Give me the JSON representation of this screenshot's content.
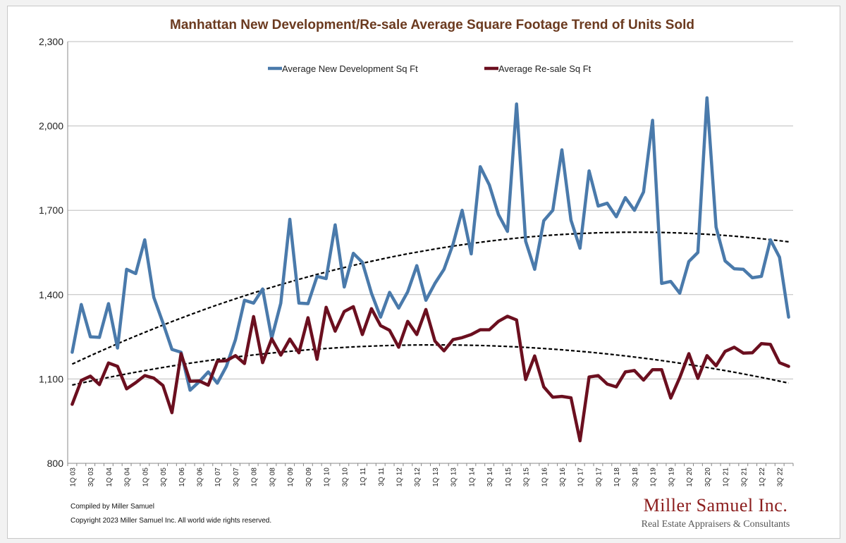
{
  "chart_data": {
    "type": "line",
    "title": "Manhattan New Development/Re-sale Average Square Footage Trend of Units Sold",
    "xlabel": "",
    "ylabel": "",
    "ylim": [
      800,
      2300
    ],
    "y_ticks": [
      "800",
      "1,100",
      "1,400",
      "1,700",
      "2,000",
      "2,300"
    ],
    "grid": "horizontal",
    "legend_position": "top-center",
    "x_tick_labels": [
      "1Q 03",
      "3Q 03",
      "1Q 04",
      "3Q 04",
      "1Q 05",
      "3Q 05",
      "1Q 06",
      "3Q 06",
      "1Q 07",
      "3Q 07",
      "1Q 08",
      "3Q 08",
      "1Q 09",
      "3Q 09",
      "1Q 10",
      "3Q 10",
      "1Q 11",
      "3Q 11",
      "1Q 12",
      "3Q 12",
      "1Q 13",
      "3Q 13",
      "1Q 14",
      "3Q 14",
      "1Q 15",
      "3Q 15",
      "1Q 16",
      "3Q 16",
      "1Q 17",
      "3Q 17",
      "1Q 18",
      "3Q 18",
      "1Q 19",
      "3Q 19",
      "1Q 20",
      "3Q 20",
      "1Q 21",
      "3Q 21",
      "1Q 22",
      "3Q 22"
    ],
    "x": [
      "1Q 03",
      "2Q 03",
      "3Q 03",
      "4Q 03",
      "1Q 04",
      "2Q 04",
      "3Q 04",
      "4Q 04",
      "1Q 05",
      "2Q 05",
      "3Q 05",
      "4Q 05",
      "1Q 06",
      "2Q 06",
      "3Q 06",
      "4Q 06",
      "1Q 07",
      "2Q 07",
      "3Q 07",
      "4Q 07",
      "1Q 08",
      "2Q 08",
      "3Q 08",
      "4Q 08",
      "1Q 09",
      "2Q 09",
      "3Q 09",
      "4Q 09",
      "1Q 10",
      "2Q 10",
      "3Q 10",
      "4Q 10",
      "1Q 11",
      "2Q 11",
      "3Q 11",
      "4Q 11",
      "1Q 12",
      "2Q 12",
      "3Q 12",
      "4Q 12",
      "1Q 13",
      "2Q 13",
      "3Q 13",
      "4Q 13",
      "1Q 14",
      "2Q 14",
      "3Q 14",
      "4Q 14",
      "1Q 15",
      "2Q 15",
      "3Q 15",
      "4Q 15",
      "1Q 16",
      "2Q 16",
      "3Q 16",
      "4Q 16",
      "1Q 17",
      "2Q 17",
      "3Q 17",
      "4Q 17",
      "1Q 18",
      "2Q 18",
      "3Q 18",
      "4Q 18",
      "1Q 19",
      "2Q 19",
      "3Q 19",
      "4Q 19",
      "1Q 20",
      "2Q 20",
      "3Q 20",
      "4Q 20",
      "1Q 21",
      "2Q 21",
      "3Q 21",
      "4Q 21",
      "1Q 22",
      "2Q 22",
      "3Q 22",
      "4Q 22"
    ],
    "series": [
      {
        "name": "Average New Development Sq Ft",
        "color": "#4a7aab",
        "values": [
          1195,
          1365,
          1250,
          1248,
          1368,
          1210,
          1490,
          1475,
          1595,
          1390,
          1300,
          1205,
          1195,
          1060,
          1090,
          1125,
          1085,
          1145,
          1240,
          1380,
          1370,
          1420,
          1245,
          1370,
          1668,
          1370,
          1368,
          1465,
          1457,
          1648,
          1427,
          1547,
          1515,
          1405,
          1320,
          1408,
          1352,
          1410,
          1503,
          1380,
          1440,
          1490,
          1580,
          1700,
          1545,
          1855,
          1790,
          1685,
          1625,
          2078,
          1590,
          1490,
          1663,
          1700,
          1915,
          1665,
          1565,
          1840,
          1715,
          1725,
          1677,
          1745,
          1700,
          1765,
          2020,
          1440,
          1447,
          1405,
          1518,
          1550,
          2100,
          1640,
          1520,
          1492,
          1490,
          1460,
          1465,
          1595,
          1533,
          1320
        ]
      },
      {
        "name": "Average Re-sale Sq Ft",
        "color": "#6b0f1f",
        "values": [
          1010,
          1095,
          1110,
          1080,
          1157,
          1145,
          1065,
          1087,
          1112,
          1103,
          1077,
          980,
          1190,
          1092,
          1093,
          1078,
          1163,
          1165,
          1183,
          1155,
          1322,
          1158,
          1243,
          1185,
          1242,
          1193,
          1318,
          1170,
          1355,
          1270,
          1340,
          1357,
          1258,
          1350,
          1290,
          1273,
          1213,
          1305,
          1258,
          1347,
          1235,
          1200,
          1240,
          1247,
          1258,
          1275,
          1275,
          1305,
          1323,
          1310,
          1098,
          1182,
          1072,
          1035,
          1038,
          1033,
          880,
          1107,
          1112,
          1082,
          1072,
          1125,
          1130,
          1096,
          1133,
          1133,
          1032,
          1105,
          1190,
          1102,
          1183,
          1147,
          1198,
          1213,
          1192,
          1193,
          1226,
          1223,
          1158,
          1145
        ]
      }
    ],
    "trendlines": [
      {
        "series": "Average New Development Sq Ft",
        "kind": "polynomial",
        "values": [
          1155,
          1588
        ]
      },
      {
        "series": "Average Re-sale Sq Ft",
        "kind": "polynomial",
        "values": [
          1080,
          1088
        ]
      }
    ]
  },
  "footer": {
    "compiled_by": "Compiled by Miller Samuel",
    "copyright": "Copyright 2023 Miller Samuel Inc.  All world wide rights reserved.",
    "brand_name": "Miller Samuel Inc.",
    "brand_tagline": "Real Estate Appraisers & Consultants"
  }
}
